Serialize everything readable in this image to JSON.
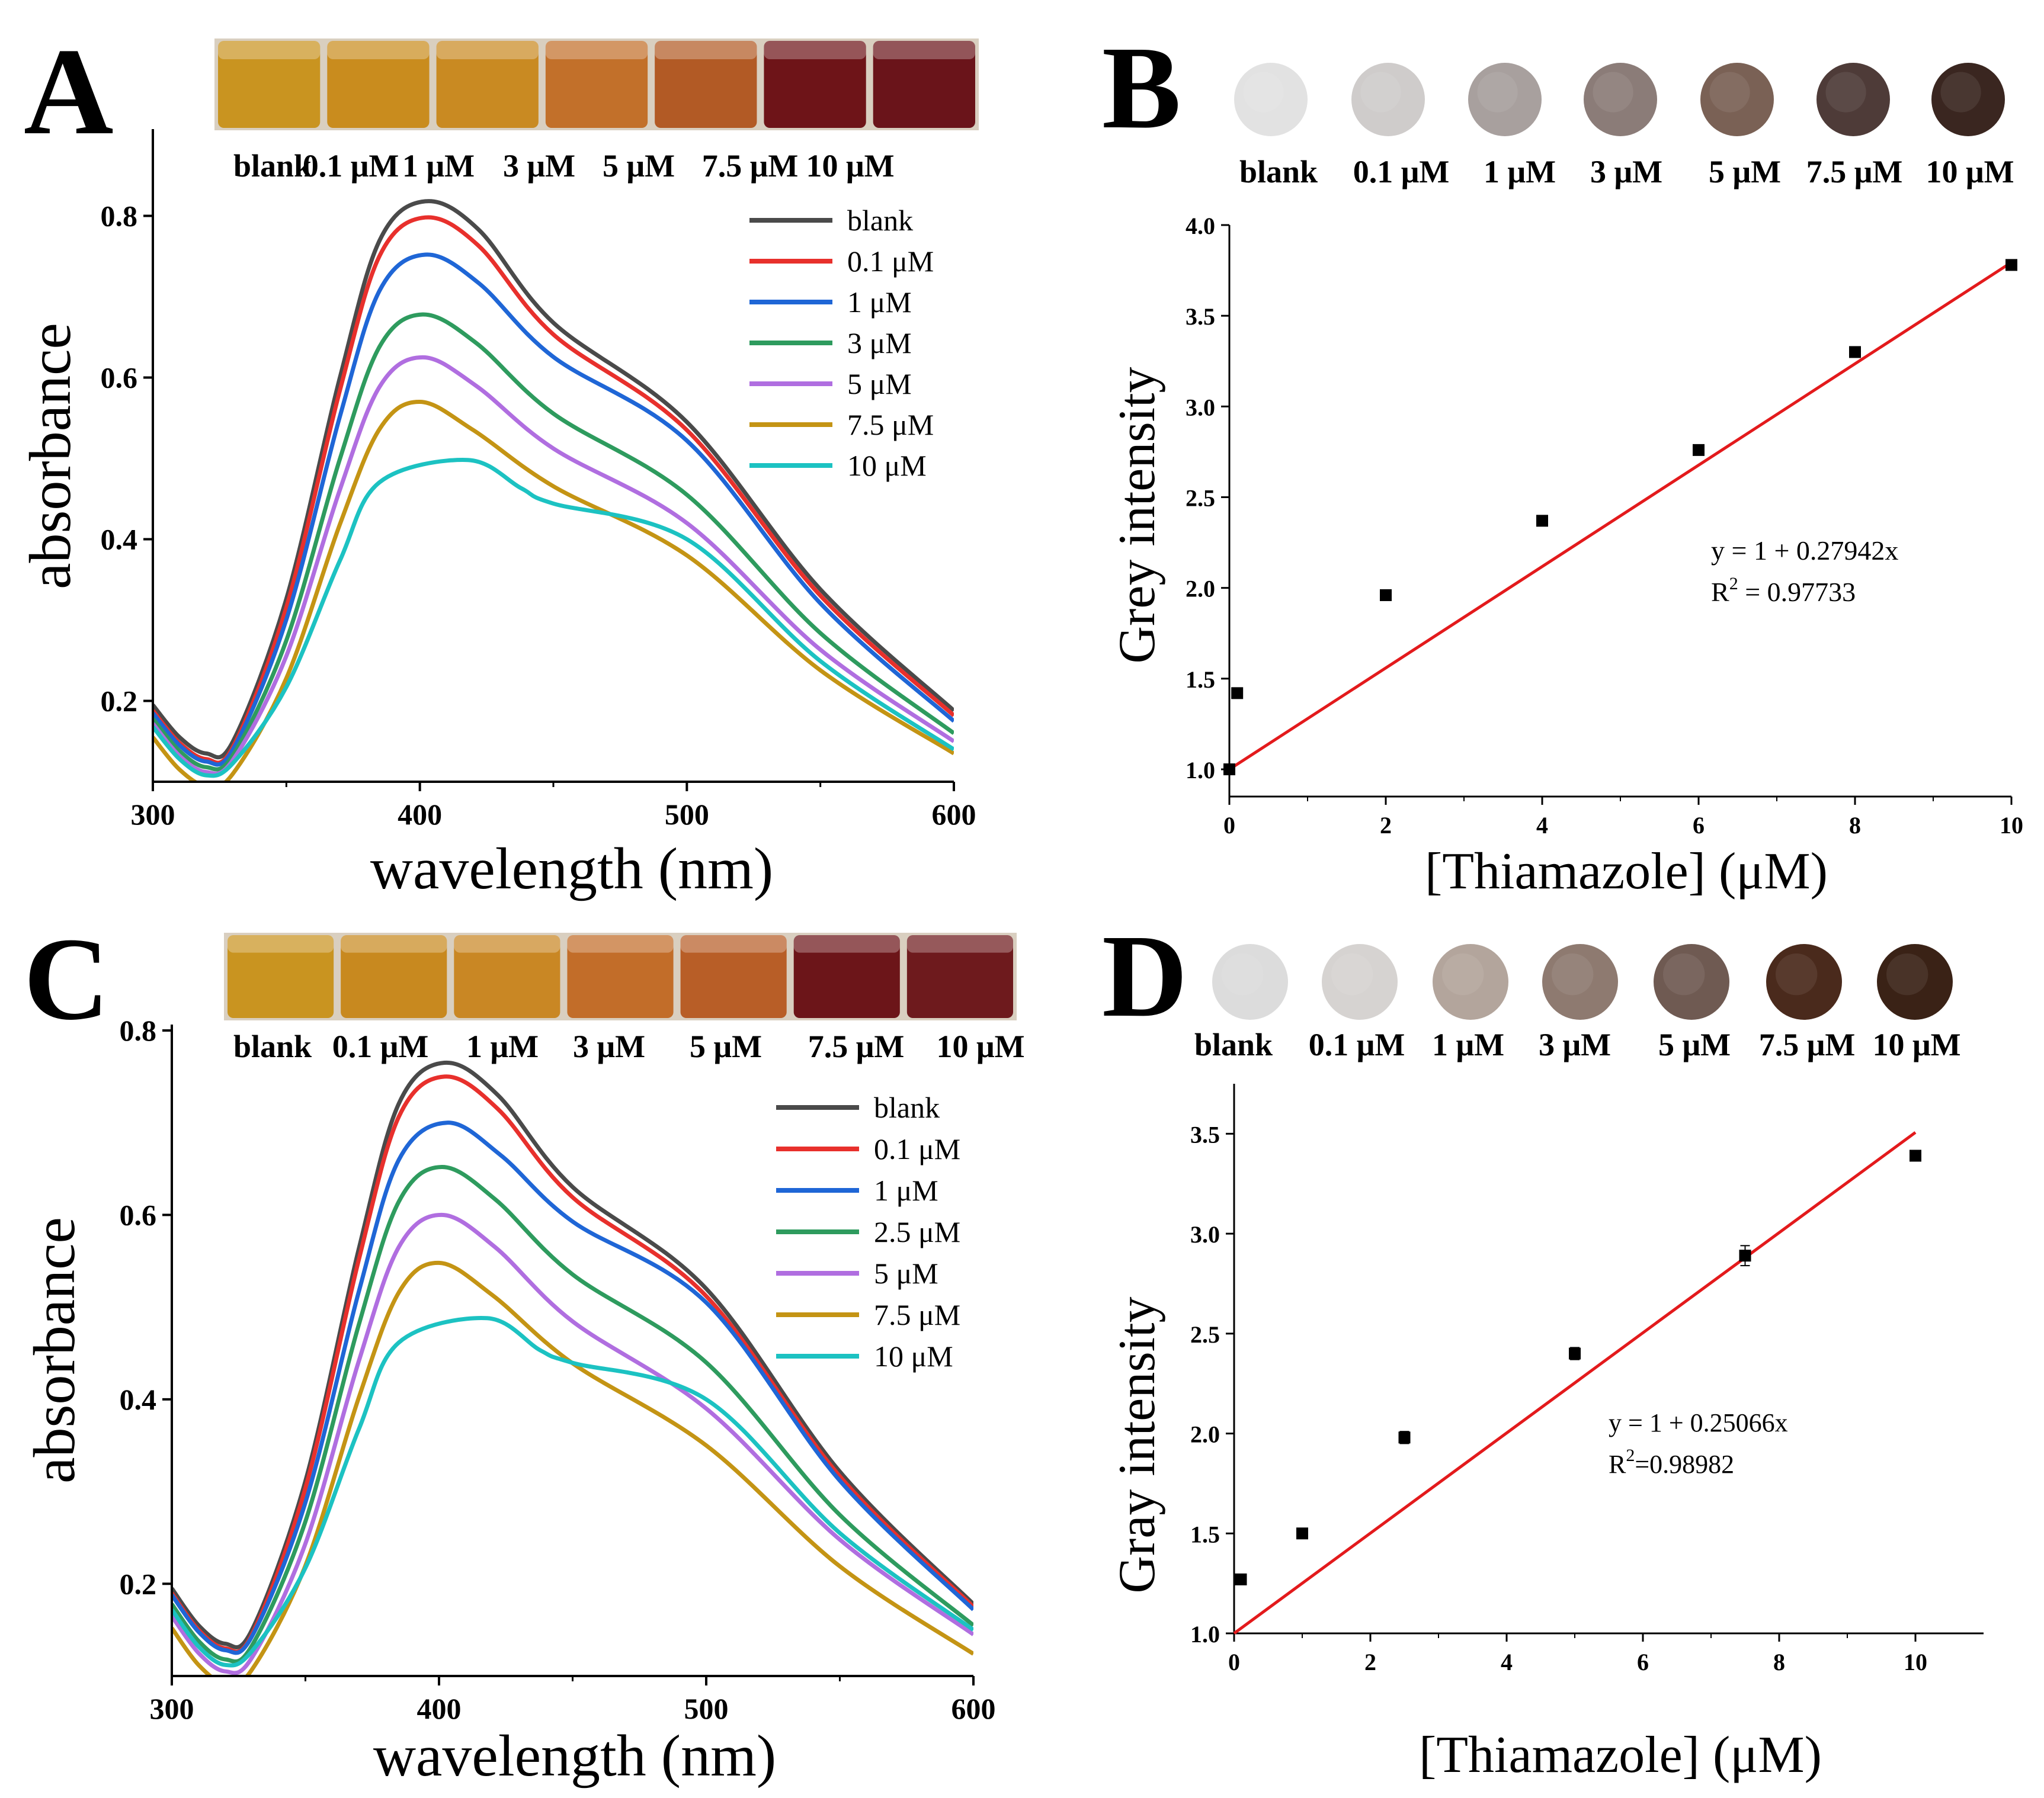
{
  "chart_data": [
    {
      "panel": "A",
      "type": "line",
      "xlabel": "wavelength (nm)",
      "ylabel": "absorbance",
      "xlim": [
        300,
        600
      ],
      "ylim": [
        0.1,
        0.9
      ],
      "xticks": [
        300,
        400,
        500,
        600
      ],
      "yticks": [
        0.2,
        0.4,
        0.6,
        0.8
      ],
      "photo_labels": [
        "blank",
        "0.1 μM",
        "1 μM",
        "3 μM",
        "5 μM",
        "7.5 μM",
        "10 μM"
      ],
      "photo_colors": [
        "#c99420",
        "#c98c1e",
        "#c98a22",
        "#c2702a",
        "#b25a25",
        "#6e1418",
        "#6a141a"
      ],
      "series": [
        {
          "name": "blank",
          "color": "#4a4a4a",
          "min": 0.135,
          "peak": 0.818,
          "peak_x": 402,
          "v500": 0.545,
          "v600": 0.188
        },
        {
          "name": "0.1 μM",
          "color": "#e8302c",
          "min": 0.128,
          "peak": 0.798,
          "peak_x": 402,
          "v500": 0.535,
          "v600": 0.182
        },
        {
          "name": "1 μM",
          "color": "#1f66d6",
          "min": 0.125,
          "peak": 0.752,
          "peak_x": 402,
          "v500": 0.522,
          "v600": 0.175
        },
        {
          "name": "3 μM",
          "color": "#2e9b5e",
          "min": 0.118,
          "peak": 0.678,
          "peak_x": 401,
          "v500": 0.455,
          "v600": 0.16
        },
        {
          "name": "5 μM",
          "color": "#b06ee0",
          "min": 0.112,
          "peak": 0.625,
          "peak_x": 401,
          "v500": 0.42,
          "v600": 0.15
        },
        {
          "name": "7.5 μM",
          "color": "#c49414",
          "min": 0.095,
          "peak": 0.57,
          "peak_x": 400,
          "v500": 0.38,
          "v600": 0.135
        },
        {
          "name": "10 μM",
          "color": "#1cc2c2",
          "min": 0.108,
          "peak": 0.498,
          "peak_x": 418,
          "v500": 0.4,
          "v600": 0.14
        }
      ]
    },
    {
      "panel": "B",
      "type": "scatter",
      "xlabel": "[Thiamazole] (μM)",
      "ylabel": "Grey intensity",
      "xlim": [
        0,
        10
      ],
      "ylim": [
        0.85,
        4.0
      ],
      "xticks": [
        0,
        2,
        4,
        6,
        8,
        10
      ],
      "yticks": [
        1.0,
        1.5,
        2.0,
        2.5,
        3.0,
        3.5,
        4.0
      ],
      "photo_labels": [
        "blank",
        "0.1 μM",
        "1 μM",
        "3 μM",
        "5 μM",
        "7.5 μM",
        "10 μM"
      ],
      "photo_colors": [
        "#e2e2e2",
        "#cfcccb",
        "#a8a09e",
        "#8b7c78",
        "#7a6155",
        "#4e3b38",
        "#3a2620"
      ],
      "x": [
        0,
        0.1,
        2,
        4,
        6,
        8,
        10
      ],
      "y": [
        1.0,
        1.42,
        1.96,
        2.37,
        2.76,
        3.3,
        3.78
      ],
      "fit": {
        "intercept": 1,
        "slope": 0.27942,
        "x_range": [
          0,
          10
        ]
      },
      "equation": "y = 1 + 0.27942x",
      "r2_label": "R",
      "r2_sup": "2",
      "r2_value": " = 0.97733"
    },
    {
      "panel": "C",
      "type": "line",
      "xlabel": "wavelength (nm)",
      "ylabel": "absorbance",
      "xlim": [
        300,
        600
      ],
      "ylim": [
        0.1,
        0.8
      ],
      "xticks": [
        300,
        400,
        500,
        600
      ],
      "yticks": [
        0.2,
        0.4,
        0.6,
        0.8
      ],
      "photo_labels": [
        "blank",
        "0.1 μM",
        "1 μM",
        "3 μM",
        "5 μM",
        "7.5 μM",
        "10 μM"
      ],
      "photo_colors": [
        "#c99420",
        "#c8891f",
        "#c98724",
        "#c26d29",
        "#b85e27",
        "#6c1519",
        "#6e1a1d"
      ],
      "series": [
        {
          "name": "blank",
          "color": "#4a4a4a",
          "min": 0.135,
          "peak": 0.765,
          "peak_x": 402,
          "v500": 0.52,
          "v600": 0.178
        },
        {
          "name": "0.1 μM",
          "color": "#e8302c",
          "min": 0.13,
          "peak": 0.75,
          "peak_x": 402,
          "v500": 0.512,
          "v600": 0.175
        },
        {
          "name": "1 μM",
          "color": "#1f66d6",
          "min": 0.128,
          "peak": 0.7,
          "peak_x": 403,
          "v500": 0.505,
          "v600": 0.172
        },
        {
          "name": "2.5 μM",
          "color": "#2e9b5e",
          "min": 0.118,
          "peak": 0.652,
          "peak_x": 401,
          "v500": 0.44,
          "v600": 0.155
        },
        {
          "name": "5 μM",
          "color": "#b06ee0",
          "min": 0.105,
          "peak": 0.6,
          "peak_x": 401,
          "v500": 0.39,
          "v600": 0.145
        },
        {
          "name": "7.5 μM",
          "color": "#c49414",
          "min": 0.092,
          "peak": 0.548,
          "peak_x": 400,
          "v500": 0.35,
          "v600": 0.124
        },
        {
          "name": "10 μM",
          "color": "#1cc2c2",
          "min": 0.112,
          "peak": 0.488,
          "peak_x": 418,
          "v500": 0.4,
          "v600": 0.15
        }
      ]
    },
    {
      "panel": "D",
      "type": "scatter",
      "xlabel": "[Thiamazole] (μM)",
      "ylabel": "Gray intensity",
      "xlim": [
        0,
        11
      ],
      "ylim": [
        1.0,
        3.75
      ],
      "xticks": [
        0,
        2,
        4,
        6,
        8,
        10
      ],
      "yticks": [
        1.0,
        1.5,
        2.0,
        2.5,
        3.0,
        3.5
      ],
      "photo_labels": [
        "blank",
        "0.1 μM",
        "1 μM",
        "3 μM",
        "5 μM",
        "7.5 μM",
        "10 μM"
      ],
      "photo_colors": [
        "#dcdcdc",
        "#d6d3d1",
        "#b3a59c",
        "#8e7a70",
        "#6f5a52",
        "#4a2a1c",
        "#3a2216"
      ],
      "x": [
        0.1,
        1,
        2.5,
        5,
        7.5,
        10
      ],
      "y": [
        1.27,
        1.5,
        1.98,
        2.4,
        2.89,
        3.39
      ],
      "err": [
        0.02,
        0.02,
        0.03,
        0.03,
        0.05,
        0.02
      ],
      "fit": {
        "intercept": 1,
        "slope": 0.25066,
        "x_range": [
          0,
          10
        ]
      },
      "equation": "y = 1 + 0.25066x",
      "r2_label": "R",
      "r2_sup": "2",
      "r2_value": "=0.98982"
    }
  ]
}
